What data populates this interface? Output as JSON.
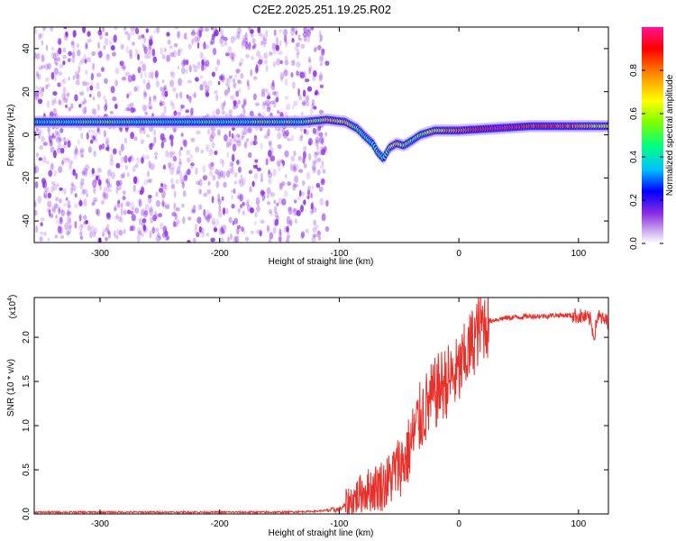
{
  "chart_data": [
    {
      "type": "heatmap",
      "title": "C2E2.2025.251.19.25.R02",
      "xlabel": "Height of straight line (km)",
      "ylabel": "Frequency (Hz)",
      "xlim": [
        -355,
        125
      ],
      "ylim": [
        -50,
        50
      ],
      "xticks": [
        -300,
        -200,
        -100,
        0,
        100
      ],
      "yticks": [
        -40,
        -20,
        0,
        20,
        40
      ],
      "colorbar": {
        "label": "Normalized spectral amplitude",
        "range": [
          0,
          1
        ],
        "ticks": [
          0.0,
          0.2,
          0.4,
          0.6,
          0.8
        ],
        "tick_labels": [
          "0.0",
          "0.2",
          "0.4",
          "0.6",
          "0.8"
        ],
        "colors": [
          "#ffffff",
          "#c8a8ee",
          "#8a2be2",
          "#0000ff",
          "#00bfff",
          "#00ff7f",
          "#7fff00",
          "#ffff00",
          "#ff8c00",
          "#ff0000",
          "#ff1493"
        ]
      },
      "ridge": {
        "name": "frequency ridge",
        "x": [
          -355,
          -300,
          -250,
          -200,
          -150,
          -130,
          -110,
          -95,
          -85,
          -78,
          -72,
          -68,
          -63,
          -58,
          -52,
          -46,
          -40,
          -32,
          -20,
          0,
          30,
          60,
          90,
          125
        ],
        "y": [
          6,
          6,
          6,
          6,
          6,
          6,
          7,
          6,
          3,
          -1,
          -4,
          -8,
          -11,
          -6,
          -4,
          -5,
          -3,
          0,
          2,
          2,
          3,
          4,
          4,
          4
        ],
        "amplitude": [
          0.45,
          0.55,
          0.5,
          0.5,
          0.55,
          0.55,
          0.7,
          0.75,
          0.55,
          0.5,
          0.5,
          0.5,
          0.55,
          0.6,
          0.75,
          0.6,
          0.55,
          0.6,
          0.7,
          0.85,
          0.95,
          0.9,
          0.85,
          0.7
        ]
      },
      "noise_extent_x": [
        -355,
        -110
      ],
      "noise_color": "#8a2be2"
    },
    {
      "type": "line",
      "title": "",
      "xlabel": "Height of straight line (km)",
      "ylabel": "SNR (10 * v/v)",
      "y_multiplier": "(x10^4)",
      "y_multiplier_base": "(x10",
      "y_multiplier_exp": "4",
      "y_multiplier_close": ")",
      "xlim": [
        -355,
        125
      ],
      "ylim": [
        0,
        2.45
      ],
      "xticks": [
        -300,
        -200,
        -100,
        0,
        100
      ],
      "yticks": [
        0.0,
        0.5,
        1.0,
        1.5,
        2.0
      ],
      "ytick_labels": [
        "0.0",
        "0.5",
        "1.0",
        "1.5",
        "2.0"
      ],
      "series": [
        {
          "name": "SNR",
          "color": "#e8302a",
          "x": [
            -355,
            -300,
            -250,
            -200,
            -150,
            -120,
            -100,
            -90,
            -80,
            -70,
            -60,
            -55,
            -50,
            -45,
            -40,
            -35,
            -30,
            -25,
            -20,
            -15,
            -10,
            -5,
            0,
            5,
            10,
            15,
            20,
            25,
            30,
            40,
            50,
            60,
            70,
            80,
            90,
            100,
            105,
            110,
            113,
            116,
            120,
            125
          ],
          "y": [
            0.02,
            0.02,
            0.02,
            0.02,
            0.02,
            0.03,
            0.05,
            0.15,
            0.25,
            0.3,
            0.35,
            0.45,
            0.55,
            0.6,
            0.8,
            1.0,
            1.15,
            1.25,
            1.35,
            1.45,
            1.5,
            1.55,
            1.6,
            1.75,
            1.9,
            2.05,
            2.15,
            2.18,
            2.2,
            2.22,
            2.23,
            2.24,
            2.24,
            2.25,
            2.25,
            2.24,
            2.23,
            2.2,
            2.0,
            2.25,
            2.2,
            2.18
          ]
        }
      ]
    }
  ]
}
